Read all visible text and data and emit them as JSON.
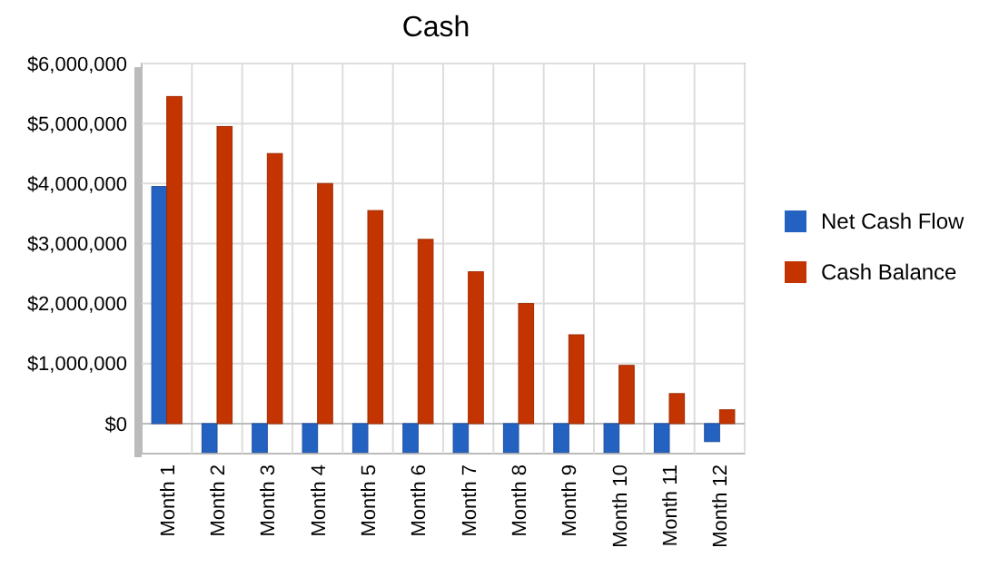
{
  "chart_data": {
    "type": "bar",
    "title": "Cash",
    "categories": [
      "Month 1",
      "Month 2",
      "Month 3",
      "Month 4",
      "Month 5",
      "Month 6",
      "Month 7",
      "Month 8",
      "Month 9",
      "Month 10",
      "Month 11",
      "Month 12"
    ],
    "series": [
      {
        "name": "Net Cash Flow",
        "color": "#2462c2",
        "values": [
          3950000,
          -480000,
          -480000,
          -480000,
          -480000,
          -480000,
          -480000,
          -480000,
          -480000,
          -480000,
          -480000,
          -300000
        ]
      },
      {
        "name": "Cash Balance",
        "color": "#c43400",
        "values": [
          5450000,
          4950000,
          4500000,
          4000000,
          3550000,
          3070000,
          2530000,
          2000000,
          1480000,
          970000,
          500000,
          230000
        ]
      }
    ],
    "ylim": [
      -500000,
      6000000
    ],
    "yticks": [
      {
        "value": 0,
        "label": "$0"
      },
      {
        "value": 1000000,
        "label": "$1,000,000"
      },
      {
        "value": 2000000,
        "label": "$2,000,000"
      },
      {
        "value": 3000000,
        "label": "$3,000,000"
      },
      {
        "value": 4000000,
        "label": "$4,000,000"
      },
      {
        "value": 5000000,
        "label": "$5,000,000"
      },
      {
        "value": 6000000,
        "label": "$6,000,000"
      }
    ],
    "grid": true,
    "legend": "right"
  }
}
